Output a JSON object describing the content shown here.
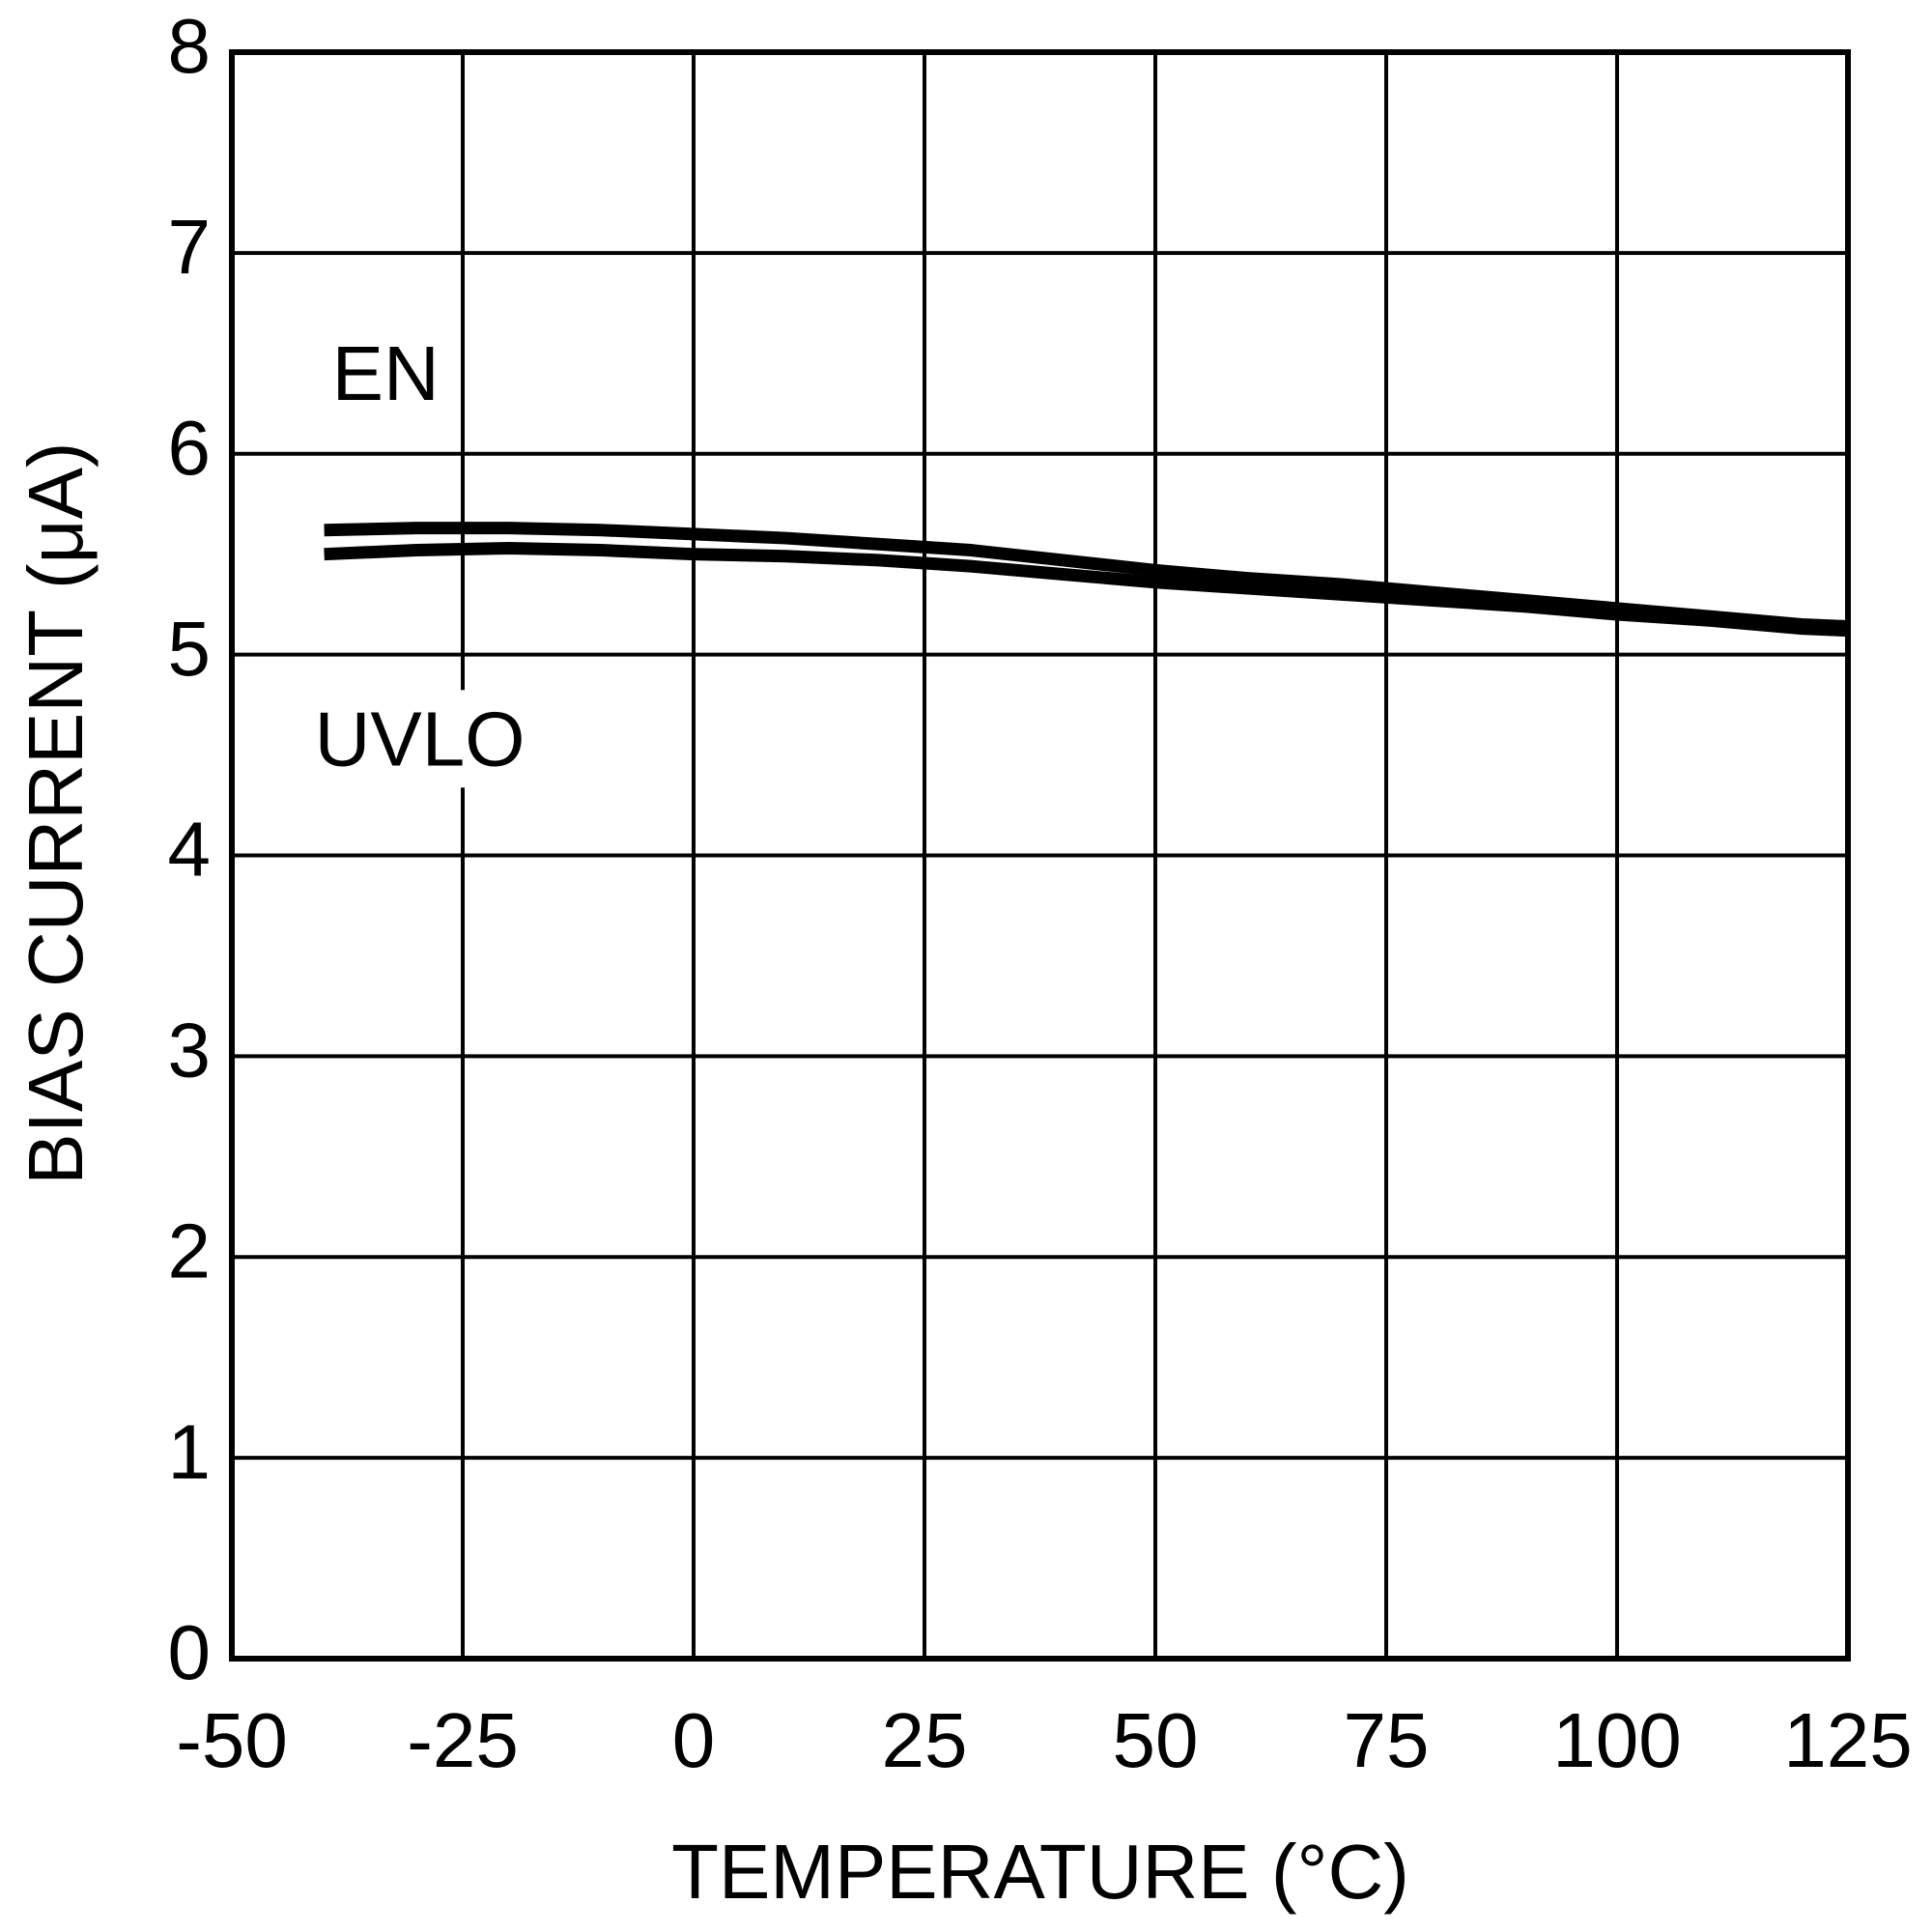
{
  "chart_data": {
    "type": "line",
    "x_label": "TEMPERATURE (°C)",
    "y_label": "BIAS CURRENT (μA)",
    "x": [
      -40,
      -30,
      -20,
      -10,
      0,
      10,
      20,
      30,
      40,
      50,
      60,
      70,
      80,
      90,
      100,
      110,
      120,
      125
    ],
    "series": [
      {
        "name": "EN",
        "color": "#000000",
        "values": [
          5.62,
          5.63,
          5.63,
          5.62,
          5.6,
          5.58,
          5.55,
          5.52,
          5.47,
          5.42,
          5.38,
          5.35,
          5.31,
          5.27,
          5.23,
          5.19,
          5.15,
          5.14
        ]
      },
      {
        "name": "UVLO",
        "color": "#000000",
        "values": [
          5.5,
          5.52,
          5.53,
          5.52,
          5.5,
          5.49,
          5.47,
          5.44,
          5.4,
          5.36,
          5.33,
          5.3,
          5.27,
          5.24,
          5.2,
          5.17,
          5.13,
          5.12
        ]
      }
    ],
    "xlim": [
      -50,
      125
    ],
    "xticks": [
      -50,
      -25,
      0,
      25,
      50,
      75,
      100,
      125
    ],
    "ylim": [
      0,
      8
    ],
    "yticks": [
      0,
      1,
      2,
      3,
      4,
      5,
      6,
      7,
      8
    ],
    "grid": true
  }
}
